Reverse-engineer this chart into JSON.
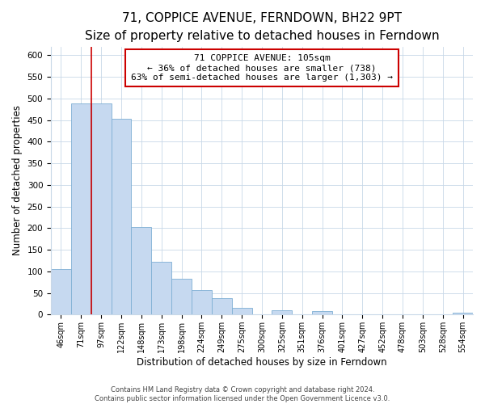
{
  "title": "71, COPPICE AVENUE, FERNDOWN, BH22 9PT",
  "subtitle": "Size of property relative to detached houses in Ferndown",
  "xlabel": "Distribution of detached houses by size in Ferndown",
  "ylabel": "Number of detached properties",
  "bar_labels": [
    "46sqm",
    "71sqm",
    "97sqm",
    "122sqm",
    "148sqm",
    "173sqm",
    "198sqm",
    "224sqm",
    "249sqm",
    "275sqm",
    "300sqm",
    "325sqm",
    "351sqm",
    "376sqm",
    "401sqm",
    "427sqm",
    "452sqm",
    "478sqm",
    "503sqm",
    "528sqm",
    "554sqm"
  ],
  "bar_values": [
    105,
    488,
    488,
    453,
    202,
    122,
    82,
    57,
    38,
    15,
    0,
    9,
    0,
    8,
    0,
    0,
    0,
    0,
    0,
    0,
    5
  ],
  "bar_color": "#c6d9f0",
  "bar_edge_color": "#7eafd4",
  "vline_x_idx": 2,
  "vline_color": "#cc0000",
  "annotation_line1": "71 COPPICE AVENUE: 105sqm",
  "annotation_line2": "← 36% of detached houses are smaller (738)",
  "annotation_line3": "63% of semi-detached houses are larger (1,303) →",
  "annotation_box_color": "#ffffff",
  "annotation_box_edge": "#cc0000",
  "ylim": [
    0,
    620
  ],
  "yticks": [
    0,
    50,
    100,
    150,
    200,
    250,
    300,
    350,
    400,
    450,
    500,
    550,
    600
  ],
  "footer_line1": "Contains HM Land Registry data © Crown copyright and database right 2024.",
  "footer_line2": "Contains public sector information licensed under the Open Government Licence v3.0.",
  "title_fontsize": 11,
  "subtitle_fontsize": 9.5,
  "label_fontsize": 8.5,
  "tick_fontsize": 7.5,
  "annotation_fontsize": 8,
  "footer_fontsize": 6
}
